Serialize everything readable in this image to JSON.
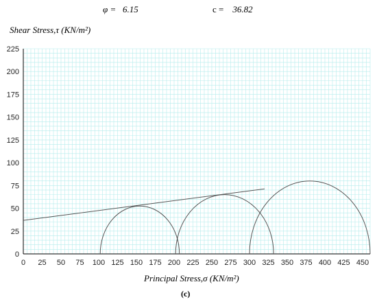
{
  "header": {
    "phi_label": "φ =",
    "phi_value": "6.15",
    "c_label": "c =",
    "c_value": "36.82"
  },
  "caption": "(c)",
  "chart_data": {
    "type": "line",
    "ylabel": "Shear Stress,τ  (KN/m²)",
    "xlabel": "Principal Stress,σ  (KN/m²)",
    "xlim": [
      0,
      460
    ],
    "ylim": [
      0,
      225
    ],
    "xticks": [
      0,
      25,
      50,
      75,
      100,
      125,
      150,
      175,
      200,
      225,
      250,
      275,
      300,
      325,
      350,
      375,
      400,
      425,
      450
    ],
    "yticks": [
      0,
      25,
      50,
      75,
      100,
      125,
      150,
      175,
      200,
      225
    ],
    "grid": true,
    "mohr_circles": [
      {
        "sigma3": 102,
        "sigma1": 207
      },
      {
        "sigma3": 202,
        "sigma1": 332
      },
      {
        "sigma3": 300,
        "sigma1": 460
      }
    ],
    "failure_envelope": {
      "phi_deg": 6.15,
      "c": 36.82,
      "x": [
        0,
        320
      ]
    },
    "colors": {
      "grid": "#b5ecec",
      "line": "#555555",
      "axis": "#000000"
    }
  }
}
